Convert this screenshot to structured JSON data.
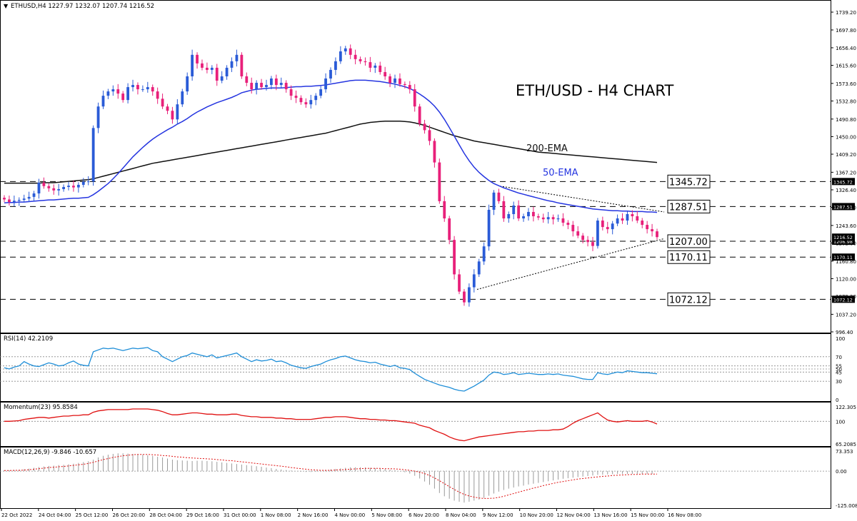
{
  "header": {
    "symbol_line": "ETHUSD,H4  1227.97 1232.07 1207.74 1216.52"
  },
  "colors": {
    "bull": "#2a5bd7",
    "bear": "#e8207a",
    "ema50": "#2535e0",
    "ema200": "#111111",
    "rsi": "#1e8ed8",
    "momentum": "#e01010",
    "macd_signal": "#e01010",
    "macd_hist": "#9a9a9a"
  },
  "main_chart": {
    "title": "ETH/USD - H4 CHART",
    "ema200_label": "200-EMA",
    "ema50_label": "50-EMA",
    "price_ticks": [
      "1739.20",
      "1697.80",
      "1656.40",
      "1615.60",
      "1573.60",
      "1532.80",
      "1490.80",
      "1450.00",
      "1409.20",
      "1367.20",
      "1326.40",
      "1285.60",
      "1243.60",
      "1202.80",
      "1160.80",
      "1120.00",
      "1079.20",
      "1037.20",
      "996.40"
    ],
    "levels": [
      {
        "label": "1345.72",
        "price": 1345.72,
        "tag": "1345.72"
      },
      {
        "label": "1287.51",
        "price": 1287.51,
        "tag": "1287.51"
      },
      {
        "label": "1207.00",
        "price": 1207.0,
        "tag": "1206.98"
      },
      {
        "label": "1170.11",
        "price": 1170.11,
        "tag": "1170.11"
      },
      {
        "label": "1072.12",
        "price": 1072.12,
        "tag": "1072.12"
      }
    ],
    "current_price_tags": [
      "1216.52",
      "1206.98"
    ],
    "x_labels": [
      "22 Oct 2022",
      "24 Oct 04:00",
      "25 Oct 12:00",
      "26 Oct 20:00",
      "28 Oct 04:00",
      "29 Oct 16:00",
      "31 Oct 00:00",
      "1 Nov 08:00",
      "2 Nov 16:00",
      "4 Nov 00:00",
      "5 Nov 08:00",
      "6 Nov 20:00",
      "8 Nov 04:00",
      "9 Nov 12:00",
      "10 Nov 20:00",
      "12 Nov 04:00",
      "13 Nov 16:00",
      "15 Nov 00:00",
      "16 Nov 08:00"
    ]
  },
  "chart_data": {
    "type": "candlestick",
    "title": "ETH/USD - H4 CHART",
    "timeframe": "H4",
    "x_range": [
      "22 Oct 2022",
      "16 Nov 08:00"
    ],
    "ylim": [
      996.4,
      1739.2
    ],
    "closes": [
      1304,
      1298,
      1301,
      1303,
      1306,
      1310,
      1318,
      1343,
      1335,
      1330,
      1325,
      1328,
      1333,
      1336,
      1332,
      1338,
      1345,
      1346,
      1470,
      1520,
      1545,
      1555,
      1560,
      1550,
      1535,
      1565,
      1570,
      1560,
      1560,
      1565,
      1555,
      1538,
      1520,
      1510,
      1490,
      1525,
      1555,
      1590,
      1640,
      1620,
      1610,
      1605,
      1610,
      1580,
      1590,
      1610,
      1625,
      1640,
      1590,
      1575,
      1560,
      1575,
      1565,
      1570,
      1585,
      1570,
      1575,
      1560,
      1545,
      1540,
      1530,
      1525,
      1535,
      1545,
      1560,
      1585,
      1605,
      1625,
      1648,
      1655,
      1640,
      1630,
      1625,
      1623,
      1610,
      1615,
      1600,
      1590,
      1575,
      1585,
      1572,
      1570,
      1560,
      1520,
      1480,
      1465,
      1440,
      1390,
      1300,
      1260,
      1210,
      1130,
      1090,
      1065,
      1100,
      1130,
      1160,
      1195,
      1280,
      1320,
      1300,
      1260,
      1270,
      1290,
      1260,
      1265,
      1275,
      1265,
      1262,
      1258,
      1263,
      1258,
      1260,
      1250,
      1245,
      1230,
      1220,
      1210,
      1205,
      1196,
      1255,
      1240,
      1235,
      1248,
      1260,
      1255,
      1270,
      1265,
      1255,
      1245,
      1235,
      1230,
      1216.52
    ],
    "ema50": [
      1296,
      1297,
      1297,
      1298,
      1298,
      1299,
      1300,
      1301,
      1302,
      1303,
      1303,
      1304,
      1305,
      1306,
      1307,
      1307,
      1308,
      1309,
      1315,
      1323,
      1332,
      1341,
      1352,
      1364,
      1377,
      1390,
      1403,
      1414,
      1425,
      1435,
      1444,
      1452,
      1459,
      1466,
      1472,
      1479,
      1485,
      1492,
      1500,
      1507,
      1513,
      1519,
      1524,
      1529,
      1533,
      1537,
      1541,
      1546,
      1552,
      1555,
      1558,
      1560,
      1561,
      1562,
      1563,
      1563,
      1563,
      1564,
      1565,
      1566,
      1566,
      1567,
      1567,
      1568,
      1569,
      1570,
      1572,
      1574,
      1576,
      1578,
      1580,
      1581,
      1581,
      1581,
      1580,
      1579,
      1578,
      1576,
      1574,
      1572,
      1569,
      1566,
      1562,
      1556,
      1549,
      1541,
      1532,
      1521,
      1507,
      1490,
      1471,
      1451,
      1431,
      1411,
      1394,
      1379,
      1367,
      1357,
      1348,
      1341,
      1336,
      1331,
      1327,
      1323,
      1319,
      1316,
      1313,
      1310,
      1307,
      1304,
      1301,
      1299,
      1296,
      1294,
      1292,
      1290,
      1288,
      1286,
      1284,
      1282,
      1281,
      1280,
      1279,
      1278,
      1278,
      1277,
      1277,
      1276,
      1276,
      1276,
      1275,
      1275,
      1274
    ],
    "ema200": [
      1342,
      1342,
      1342,
      1342,
      1342,
      1342,
      1342,
      1342,
      1343,
      1343,
      1343,
      1344,
      1345,
      1346,
      1347,
      1348,
      1349,
      1350,
      1352,
      1355,
      1358,
      1361,
      1364,
      1367,
      1370,
      1373,
      1376,
      1379,
      1382,
      1385,
      1388,
      1390,
      1392,
      1394,
      1396,
      1398,
      1400,
      1402,
      1404,
      1406,
      1408,
      1410,
      1412,
      1414,
      1416,
      1418,
      1420,
      1422,
      1424,
      1426,
      1428,
      1430,
      1432,
      1434,
      1436,
      1438,
      1440,
      1442,
      1444,
      1446,
      1448,
      1450,
      1452,
      1454,
      1456,
      1458,
      1461,
      1464,
      1467,
      1470,
      1473,
      1476,
      1479,
      1481,
      1483,
      1484,
      1485,
      1486,
      1486,
      1486,
      1486,
      1485,
      1484,
      1482,
      1479,
      1476,
      1472,
      1468,
      1464,
      1460,
      1456,
      1452,
      1449,
      1446,
      1443,
      1440,
      1438,
      1436,
      1434,
      1432,
      1430,
      1428,
      1426,
      1424,
      1422,
      1420,
      1418,
      1416,
      1414,
      1413,
      1412,
      1411,
      1410,
      1409,
      1408,
      1407,
      1406,
      1405,
      1404,
      1403,
      1402,
      1401,
      1400,
      1399,
      1398,
      1397,
      1396,
      1395,
      1394,
      1393,
      1392,
      1391,
      1390
    ],
    "levels": [
      1345.72,
      1287.51,
      1207.0,
      1170.11,
      1072.12
    ],
    "series": [
      {
        "name": "RSI(14)",
        "last": 42.2109,
        "ylim": [
          0,
          100
        ],
        "levels": [
          70,
          55,
          50,
          45,
          30
        ],
        "values": [
          52,
          50,
          53,
          55,
          62,
          58,
          55,
          54,
          57,
          60,
          58,
          55,
          56,
          60,
          63,
          58,
          56,
          55,
          78,
          81,
          84,
          83,
          84,
          82,
          80,
          82,
          84,
          83,
          84,
          85,
          80,
          78,
          70,
          66,
          62,
          66,
          70,
          72,
          76,
          74,
          72,
          70,
          73,
          68,
          70,
          72,
          74,
          76,
          70,
          66,
          62,
          65,
          63,
          64,
          66,
          62,
          63,
          60,
          56,
          54,
          52,
          51,
          54,
          56,
          58,
          62,
          65,
          67,
          70,
          71,
          68,
          65,
          63,
          62,
          60,
          61,
          58,
          56,
          54,
          56,
          52,
          51,
          49,
          43,
          38,
          33,
          30,
          27,
          24,
          22,
          20,
          17,
          15,
          14,
          18,
          22,
          27,
          32,
          40,
          45,
          44,
          41,
          42,
          44,
          41,
          42,
          43,
          42,
          41,
          41,
          42,
          41,
          42,
          40,
          39,
          38,
          36,
          34,
          33,
          33,
          44,
          42,
          41,
          43,
          45,
          44,
          47,
          46,
          45,
          44,
          44,
          43,
          42.21
        ]
      },
      {
        "name": "Momentum(23)",
        "last": 95.8584,
        "ylim": [
          65.2085,
          122.305
        ],
        "levels": [
          100
        ],
        "values": [
          100,
          100,
          100.5,
          101,
          103,
          104,
          105,
          106,
          106,
          105,
          106,
          107,
          108,
          108,
          109,
          109,
          110,
          110,
          114,
          116,
          117,
          118,
          118,
          118,
          118,
          118,
          119,
          119,
          119,
          119,
          118,
          117,
          115,
          112,
          110,
          110,
          111,
          112,
          113,
          113,
          112,
          111,
          111,
          110,
          110,
          110,
          111,
          111,
          109,
          108,
          107,
          107,
          106,
          106,
          106,
          105,
          105,
          104,
          104,
          103,
          103,
          103,
          103,
          104,
          105,
          106,
          106,
          107,
          107,
          107,
          106,
          105,
          104,
          104,
          103,
          103,
          102,
          102,
          101,
          101,
          100,
          99,
          98,
          97,
          94,
          92,
          90,
          86,
          83,
          80,
          76,
          73,
          71,
          70,
          72,
          74,
          76,
          77,
          78,
          79,
          80,
          81,
          82,
          83,
          84,
          84,
          85,
          85,
          86,
          86,
          86,
          87,
          87,
          88,
          92,
          97,
          101,
          104,
          107,
          110,
          113,
          107,
          102,
          100,
          99,
          100,
          101,
          100,
          100,
          100,
          101,
          99,
          95.86
        ]
      },
      {
        "name": "MACD(12,26,9)",
        "main": -9.846,
        "signal": -10.657,
        "ylim": [
          -125.0,
          73.353
        ],
        "main_values": [
          3,
          3,
          4,
          5,
          7,
          9,
          12,
          15,
          17,
          19,
          20,
          22,
          23,
          25,
          27,
          30,
          33,
          36,
          42,
          50,
          56,
          60,
          63,
          65,
          65,
          64,
          63,
          62,
          60,
          58,
          56,
          53,
          50,
          46,
          42,
          40,
          39,
          38,
          37,
          38,
          38,
          37,
          36,
          34,
          32,
          30,
          28,
          26,
          24,
          22,
          20,
          18,
          16,
          13,
          11,
          8,
          6,
          4,
          2,
          0,
          -2,
          -3,
          -3,
          -2,
          0,
          3,
          6,
          8,
          10,
          12,
          14,
          14,
          14,
          13,
          12,
          11,
          9,
          7,
          5,
          3,
          0,
          -4,
          -9,
          -17,
          -27,
          -38,
          -50,
          -64,
          -80,
          -92,
          -101,
          -108,
          -112,
          -115,
          -112,
          -108,
          -104,
          -98,
          -90,
          -82,
          -75,
          -69,
          -64,
          -60,
          -56,
          -53,
          -49,
          -46,
          -43,
          -40,
          -37,
          -34,
          -31,
          -28,
          -26,
          -24,
          -22,
          -20,
          -18,
          -16,
          -14,
          -13,
          -12,
          -11,
          -10,
          -10,
          -10,
          -10,
          -10,
          -10,
          -10,
          -9.85
        ],
        "signal_values": [
          2,
          2,
          3,
          3,
          4,
          5,
          7,
          9,
          11,
          13,
          14,
          16,
          17,
          19,
          21,
          23,
          25,
          28,
          32,
          37,
          42,
          46,
          50,
          53,
          56,
          58,
          60,
          61,
          61,
          61,
          60,
          59,
          57,
          56,
          54,
          52,
          51,
          49,
          48,
          47,
          46,
          45,
          44,
          42,
          41,
          39,
          38,
          36,
          34,
          32,
          30,
          28,
          26,
          24,
          22,
          20,
          18,
          16,
          13,
          11,
          9,
          7,
          5,
          4,
          3,
          3,
          3,
          4,
          5,
          6,
          7,
          8,
          9,
          10,
          10,
          10,
          10,
          9,
          9,
          8,
          7,
          5,
          3,
          0,
          -4,
          -9,
          -16,
          -25,
          -35,
          -46,
          -57,
          -67,
          -77,
          -85,
          -91,
          -95,
          -98,
          -100,
          -100,
          -99,
          -96,
          -92,
          -87,
          -82,
          -77,
          -72,
          -67,
          -62,
          -58,
          -53,
          -49,
          -45,
          -41,
          -38,
          -35,
          -32,
          -29,
          -27,
          -25,
          -23,
          -21,
          -19,
          -18,
          -16,
          -15,
          -14,
          -13,
          -12,
          -12,
          -11,
          -11,
          -11,
          -10.66
        ]
      }
    ]
  },
  "rsi_panel": {
    "label": "RSI(14) 42.2109",
    "ticks": [
      "100",
      "70",
      "55",
      "50",
      "45",
      "30",
      "0"
    ]
  },
  "momentum_panel": {
    "label": "Momentum(23) 95.8584",
    "ticks": [
      "122.305",
      "100",
      "65.2085"
    ]
  },
  "macd_panel": {
    "label": "MACD(12,26,9) -9.846 -10.657",
    "ticks": [
      "73.353",
      "0.00",
      "-125.0085"
    ]
  }
}
